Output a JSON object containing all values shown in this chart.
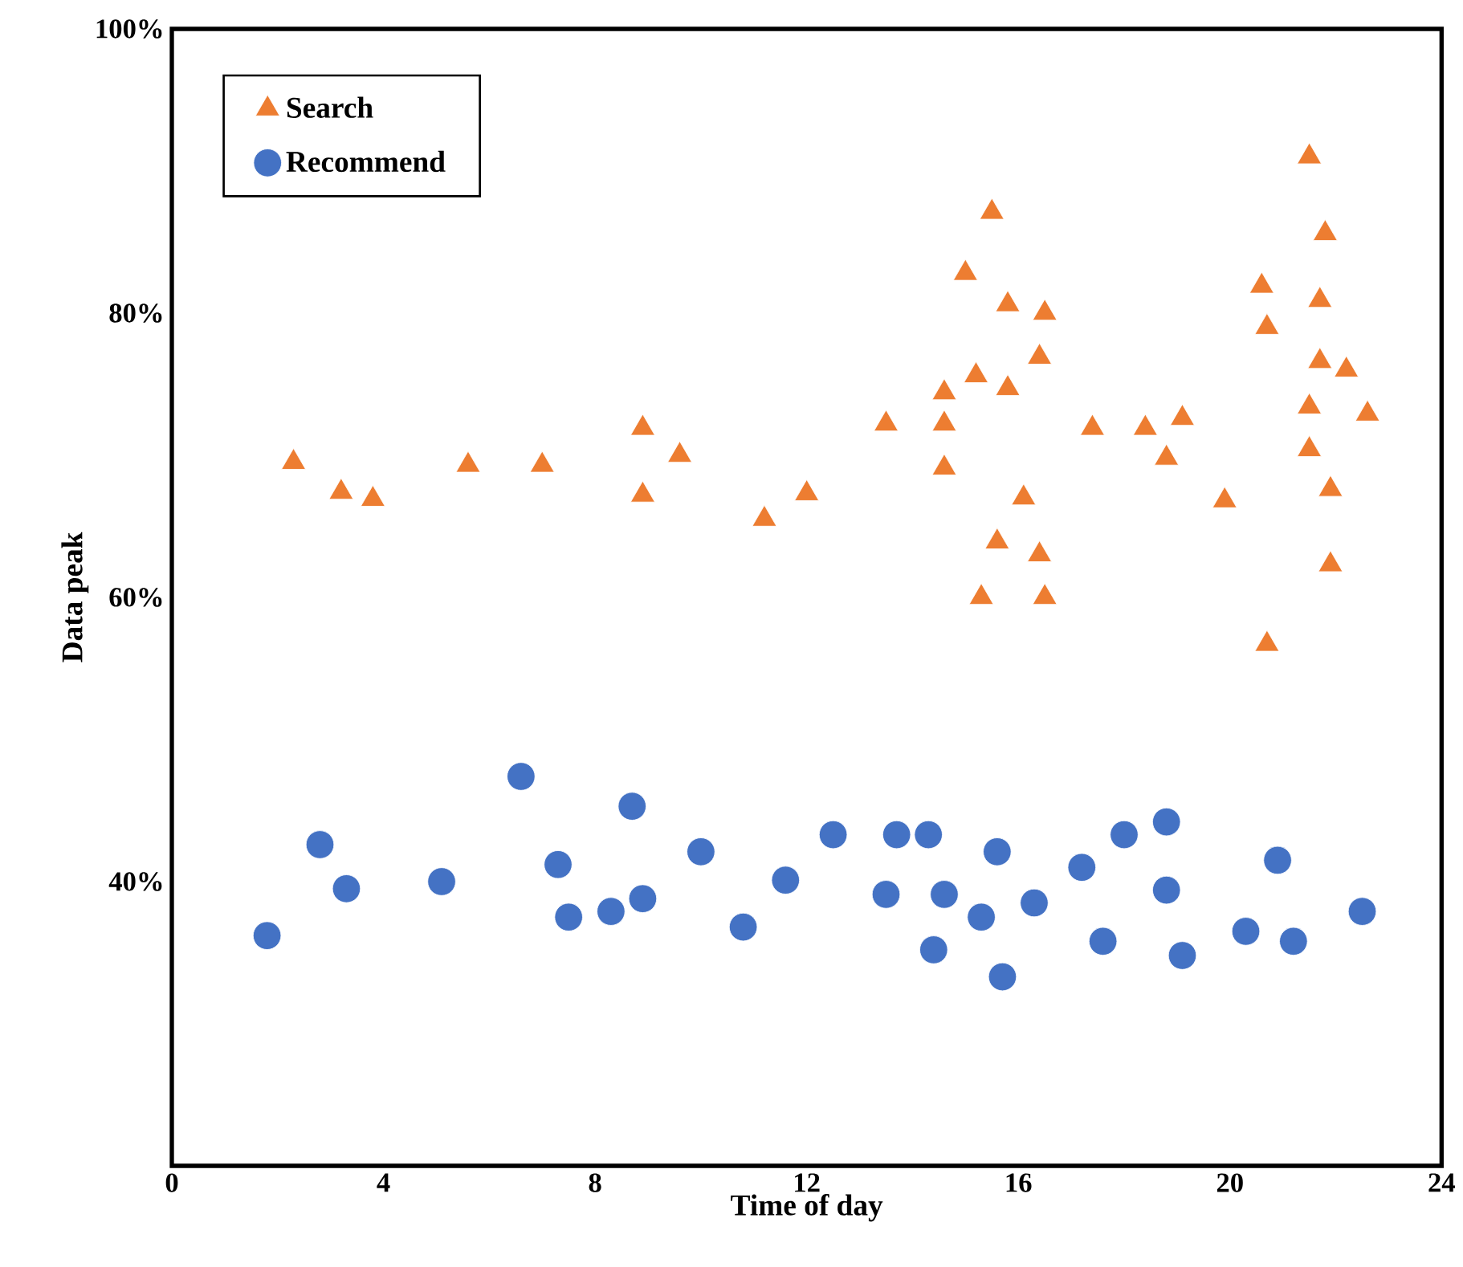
{
  "chart_data": {
    "type": "scatter",
    "xlabel": "Time of day",
    "ylabel": "Data peak",
    "xlim": [
      0,
      24
    ],
    "ylim": [
      20,
      100
    ],
    "xticks": [
      0,
      4,
      8,
      12,
      16,
      20,
      24
    ],
    "yticks": [
      {
        "value": 40,
        "label": "40%"
      },
      {
        "value": 60,
        "label": "60%"
      },
      {
        "value": 80,
        "label": "80%"
      },
      {
        "value": 100,
        "label": "100%"
      }
    ],
    "grid": false,
    "legend": "top left",
    "series": [
      {
        "name": "Search",
        "color": "#ed7d31",
        "marker": "triangle",
        "x": [
          2.3,
          3.2,
          3.8,
          5.6,
          7.0,
          8.9,
          9.6,
          8.9,
          11.2,
          12.0,
          13.5,
          14.6,
          14.6,
          14.6,
          15.2,
          15.8,
          15.5,
          15.0,
          15.8,
          16.5,
          16.4,
          16.1,
          15.6,
          16.4,
          15.3,
          16.5,
          17.4,
          18.4,
          19.1,
          18.8,
          19.9,
          20.6,
          20.7,
          20.7,
          21.5,
          21.8,
          21.7,
          21.7,
          22.2,
          21.5,
          22.6,
          21.5,
          21.9,
          21.9
        ],
        "values": [
          69.5,
          67.4,
          66.9,
          69.3,
          69.3,
          71.9,
          70.0,
          67.2,
          65.5,
          67.3,
          72.2,
          74.4,
          72.2,
          69.1,
          75.6,
          74.7,
          87.1,
          82.8,
          80.6,
          80.0,
          76.9,
          67.0,
          63.9,
          63.0,
          60.0,
          60.0,
          71.9,
          71.9,
          72.6,
          69.8,
          66.8,
          81.9,
          79.0,
          56.7,
          91.0,
          85.6,
          80.9,
          76.6,
          76.0,
          73.4,
          72.9,
          70.4,
          67.6,
          62.3
        ]
      },
      {
        "name": "Recommend",
        "color": "#4472c4",
        "marker": "circle",
        "x": [
          1.8,
          2.8,
          3.3,
          5.1,
          6.6,
          7.3,
          7.5,
          8.3,
          8.7,
          8.9,
          10.0,
          10.8,
          11.6,
          12.5,
          13.5,
          13.7,
          14.3,
          14.6,
          14.4,
          15.3,
          15.6,
          15.7,
          16.3,
          17.2,
          17.6,
          18.0,
          18.8,
          18.8,
          19.1,
          20.3,
          20.9,
          21.2,
          22.5
        ],
        "values": [
          36.2,
          42.6,
          39.5,
          40.0,
          47.4,
          41.2,
          37.5,
          37.9,
          45.3,
          38.8,
          42.1,
          36.8,
          40.1,
          43.3,
          39.1,
          43.3,
          43.3,
          39.1,
          35.2,
          37.5,
          42.1,
          33.3,
          38.5,
          41.0,
          35.8,
          43.3,
          44.2,
          39.4,
          34.8,
          36.5,
          41.5,
          35.8,
          37.9
        ]
      }
    ]
  }
}
